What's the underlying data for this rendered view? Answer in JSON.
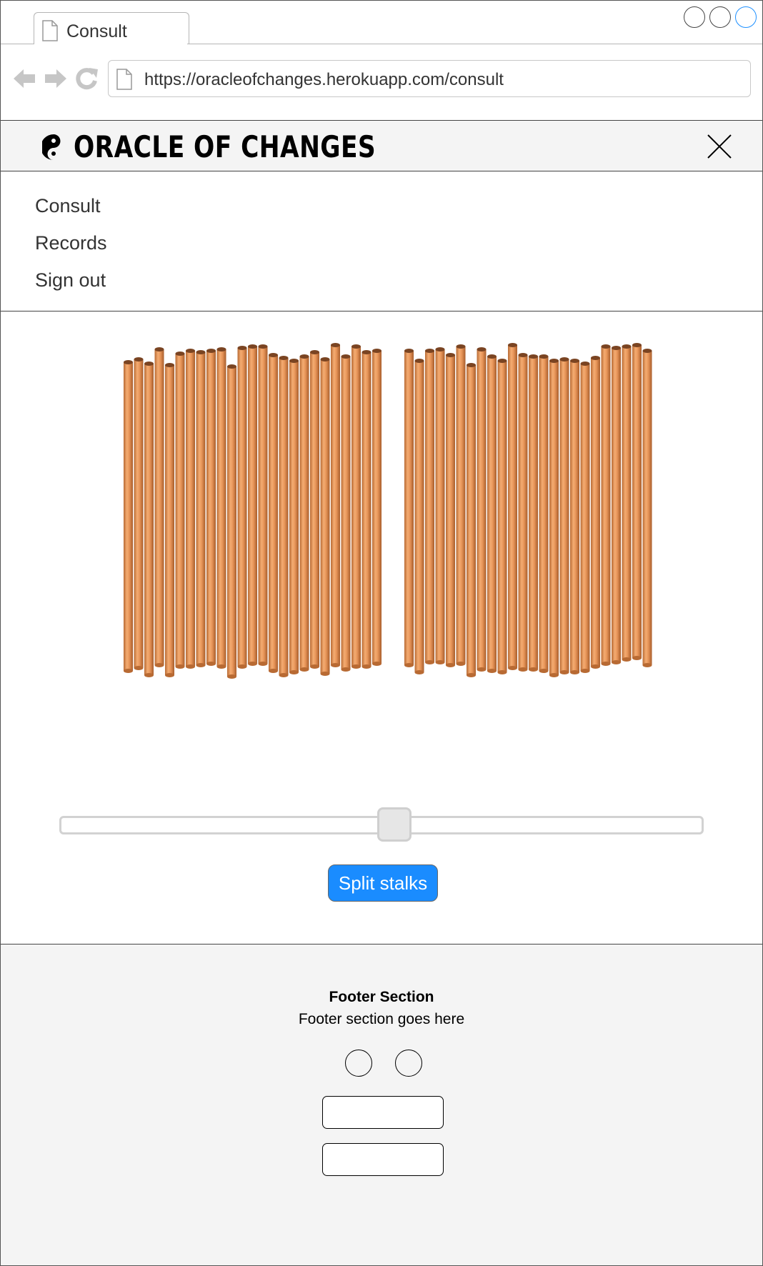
{
  "browser": {
    "tab_title": "Consult",
    "url": "https://oracleofchanges.herokuapp.com/consult",
    "icons": [
      "back-icon",
      "forward-icon",
      "reload-icon",
      "document-icon"
    ]
  },
  "header": {
    "brand": "ORACLE OF CHANGES",
    "logo_icon": "yin-yang-icon",
    "close_icon": "close-icon"
  },
  "menu": {
    "items": [
      {
        "label": "Consult"
      },
      {
        "label": "Records"
      },
      {
        "label": "Sign out"
      }
    ]
  },
  "stalks": {
    "left_count": 25,
    "right_count": 24,
    "color": "#e8965a"
  },
  "slider": {
    "value": 0.52
  },
  "split_button": {
    "label": "Split stalks",
    "color": "#1a8cff"
  },
  "footer": {
    "title": "Footer Section",
    "subtitle": "Footer section goes here"
  }
}
